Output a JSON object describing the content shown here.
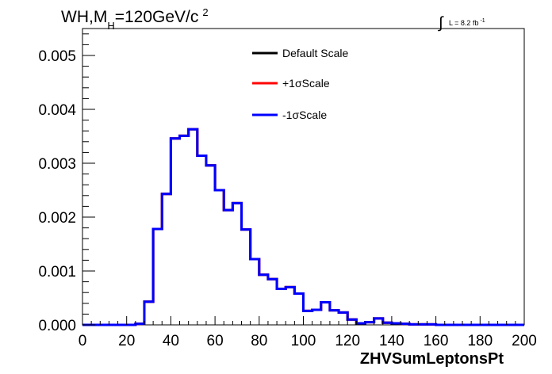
{
  "header": {
    "title_main": "WH,M",
    "title_sub": "H",
    "title_rest": "=120GeV/c",
    "title_sup": "2",
    "lumi_label": "L = 8.2 fb",
    "lumi_sup": "-1",
    "integral_symbol": "∫"
  },
  "chart_data": {
    "type": "histogram",
    "xlabel": "ZHVSumLeptonsPt",
    "ylabel": "",
    "xlim": [
      0,
      200
    ],
    "ylim": [
      0,
      0.0055
    ],
    "x_ticks": [
      0,
      20,
      40,
      60,
      80,
      100,
      120,
      140,
      160,
      180,
      200
    ],
    "x_tick_labels": [
      "0",
      "20",
      "40",
      "60",
      "80",
      "100",
      "120",
      "140",
      "160",
      "180",
      "200"
    ],
    "y_ticks": [
      0,
      0.001,
      0.002,
      0.003,
      0.004,
      0.005
    ],
    "y_tick_labels": [
      "0.000",
      "0.001",
      "0.002",
      "0.003",
      "0.004",
      "0.005"
    ],
    "grid": false,
    "legend_position": "top-center",
    "bin_width": 4,
    "bin_edges_start": 0,
    "series": [
      {
        "name": "Default Scale",
        "color": "#000000",
        "values": [
          0,
          0,
          0,
          0,
          0,
          0,
          2e-05,
          0.00043,
          0.00178,
          0.00243,
          0.00346,
          0.00351,
          0.00363,
          0.00314,
          0.00296,
          0.0025,
          0.00213,
          0.00226,
          0.00177,
          0.00122,
          0.00093,
          0.00085,
          0.00067,
          0.0007,
          0.00058,
          0.00026,
          0.00028,
          0.00042,
          0.00027,
          0.00023,
          0.0001,
          3e-05,
          5e-05,
          0.00012,
          4e-05,
          3e-05,
          2e-05,
          1e-05,
          1e-05,
          1e-05,
          0,
          0,
          0,
          0,
          0,
          0,
          0,
          0,
          0,
          0
        ]
      },
      {
        "name": "+1σScale",
        "color": "#ff0000",
        "values": [
          0,
          0,
          0,
          0,
          0,
          0,
          2e-05,
          0.00043,
          0.00178,
          0.00243,
          0.00346,
          0.00351,
          0.00363,
          0.00314,
          0.00296,
          0.0025,
          0.00213,
          0.00226,
          0.00177,
          0.00122,
          0.00093,
          0.00085,
          0.00067,
          0.0007,
          0.00058,
          0.00026,
          0.00028,
          0.00042,
          0.00027,
          0.00023,
          0.0001,
          3e-05,
          5e-05,
          0.00012,
          4e-05,
          3e-05,
          2e-05,
          1e-05,
          1e-05,
          1e-05,
          0,
          0,
          0,
          0,
          0,
          0,
          0,
          0,
          0,
          0
        ]
      },
      {
        "name": "-1σScale",
        "color": "#0000ff",
        "values": [
          0,
          0,
          0,
          0,
          0,
          0,
          2e-05,
          0.00043,
          0.00178,
          0.00243,
          0.00346,
          0.00351,
          0.00363,
          0.00314,
          0.00296,
          0.0025,
          0.00213,
          0.00226,
          0.00177,
          0.00122,
          0.00093,
          0.00085,
          0.00067,
          0.0007,
          0.00058,
          0.00026,
          0.00028,
          0.00042,
          0.00027,
          0.00023,
          0.0001,
          3e-05,
          5e-05,
          0.00012,
          4e-05,
          3e-05,
          2e-05,
          1e-05,
          1e-05,
          1e-05,
          0,
          0,
          0,
          0,
          0,
          0,
          0,
          0,
          0,
          0
        ]
      }
    ]
  }
}
